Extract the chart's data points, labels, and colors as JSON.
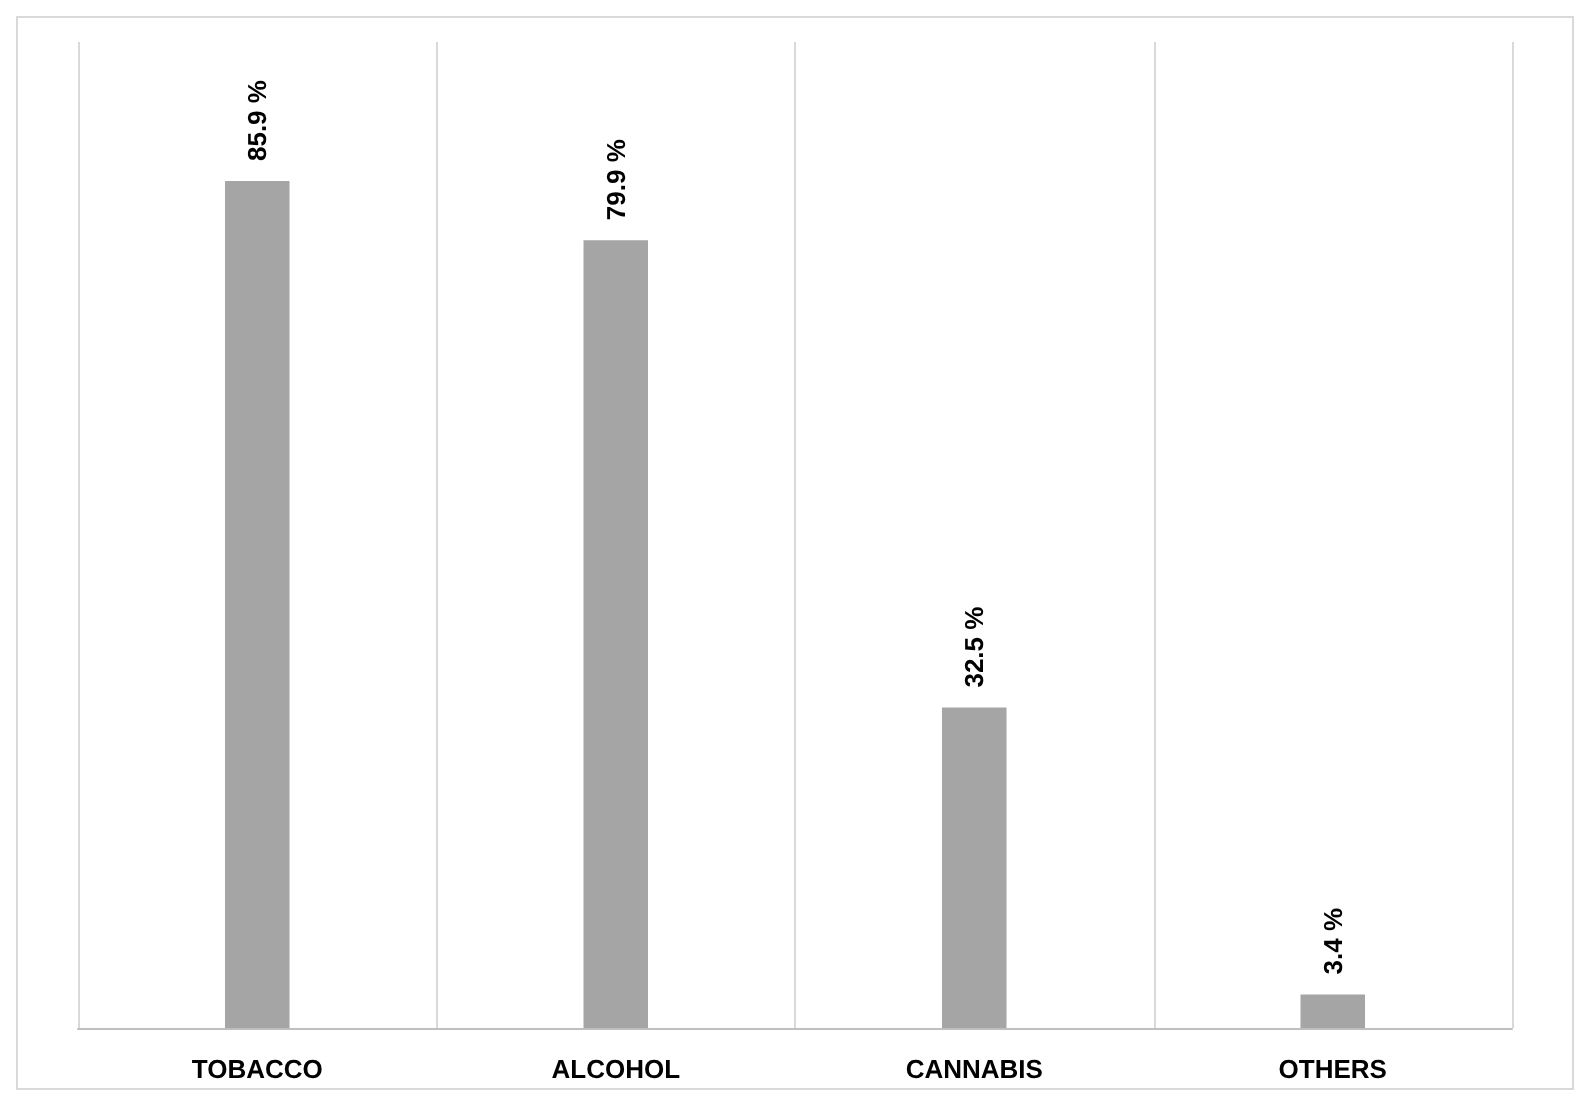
{
  "chart_data": {
    "type": "bar",
    "categories": [
      "TOBACCO",
      "ALCOHOL",
      "CANNABIS",
      "OTHERS"
    ],
    "values": [
      85.9,
      79.9,
      32.5,
      3.4
    ],
    "value_labels": [
      "85.9 %",
      "79.9 %",
      "32.5 %",
      "3.4 %"
    ],
    "color": "#a5a5a5",
    "grid": "x"
  }
}
